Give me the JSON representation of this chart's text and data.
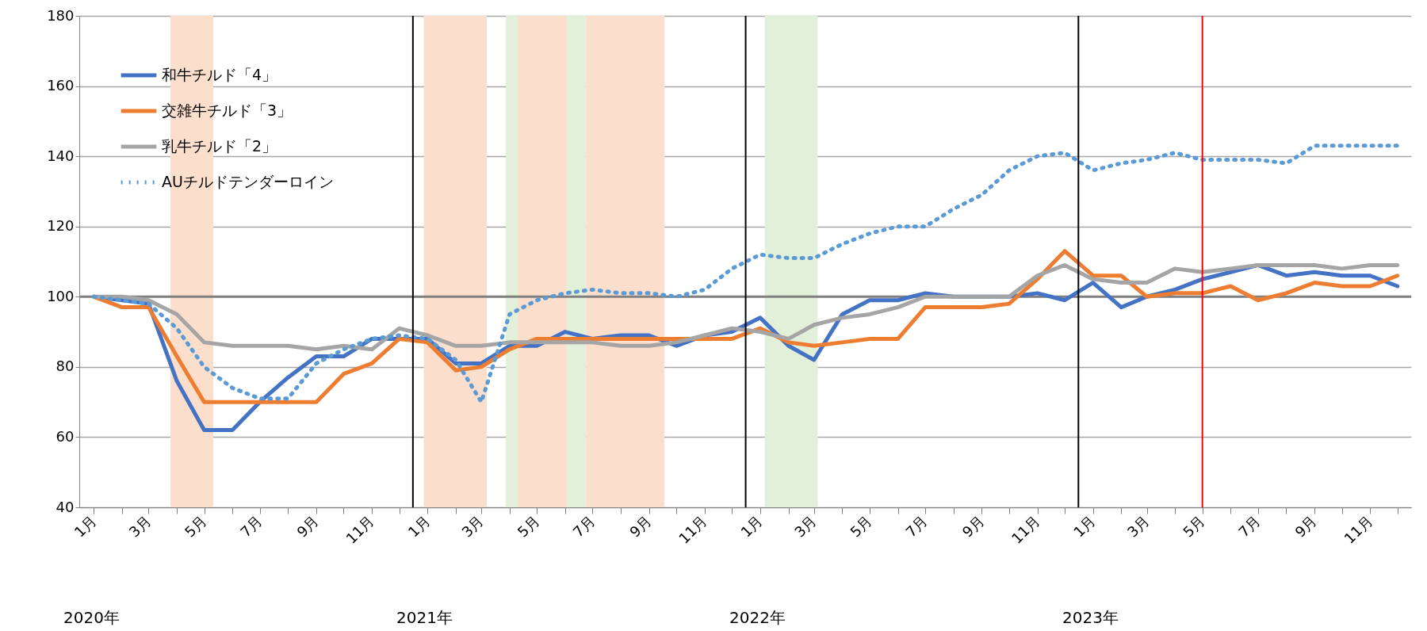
{
  "chart_data": {
    "type": "line",
    "x": [
      "2020-01",
      "2020-02",
      "2020-03",
      "2020-04",
      "2020-05",
      "2020-06",
      "2020-07",
      "2020-08",
      "2020-09",
      "2020-10",
      "2020-11",
      "2020-12",
      "2021-01",
      "2021-02",
      "2021-03",
      "2021-04",
      "2021-05",
      "2021-06",
      "2021-07",
      "2021-08",
      "2021-09",
      "2021-10",
      "2021-11",
      "2021-12",
      "2022-01",
      "2022-02",
      "2022-03",
      "2022-04",
      "2022-05",
      "2022-06",
      "2022-07",
      "2022-08",
      "2022-09",
      "2022-10",
      "2022-11",
      "2022-12",
      "2023-01",
      "2023-02",
      "2023-03",
      "2023-04",
      "2023-05",
      "2023-06",
      "2023-07",
      "2023-08",
      "2023-09",
      "2023-10",
      "2023-11",
      "2023-12"
    ],
    "series": [
      {
        "name": "和牛チルド「4」",
        "color": "#4472c4",
        "line_style": "solid",
        "values": [
          100,
          99,
          98,
          76,
          62,
          62,
          70,
          77,
          83,
          83,
          88,
          88,
          88,
          81,
          81,
          86,
          86,
          90,
          88,
          89,
          89,
          86,
          89,
          90,
          94,
          86,
          82,
          95,
          99,
          99,
          101,
          100,
          100,
          100,
          101,
          99,
          104,
          97,
          100,
          102,
          105,
          107,
          109,
          106,
          107,
          106,
          106,
          103
        ]
      },
      {
        "name": "交雑牛チルド「3」",
        "color": "#ed7d31",
        "line_style": "solid",
        "values": [
          100,
          97,
          97,
          83,
          70,
          70,
          70,
          70,
          70,
          78,
          81,
          88,
          87,
          79,
          80,
          85,
          88,
          88,
          88,
          88,
          88,
          88,
          88,
          88,
          91,
          87,
          86,
          87,
          88,
          88,
          97,
          97,
          97,
          98,
          105,
          113,
          106,
          106,
          100,
          101,
          101,
          103,
          99,
          101,
          104,
          103,
          103,
          106
        ]
      },
      {
        "name": "乳牛チルド「2」",
        "color": "#a5a5a5",
        "line_style": "solid",
        "values": [
          100,
          100,
          99,
          95,
          87,
          86,
          86,
          86,
          85,
          86,
          85,
          91,
          89,
          86,
          86,
          87,
          87,
          87,
          87,
          86,
          86,
          87,
          89,
          91,
          90,
          88,
          92,
          94,
          95,
          97,
          100,
          100,
          100,
          100,
          106,
          109,
          105,
          104,
          104,
          108,
          107,
          108,
          109,
          109,
          109,
          108,
          109,
          109
        ]
      },
      {
        "name": "AUチルドテンダーロイン",
        "color": "#5b9bd5",
        "line_style": "dotted",
        "values": [
          100,
          99,
          98,
          91,
          80,
          74,
          71,
          71,
          81,
          85,
          88,
          89,
          88,
          82,
          70,
          95,
          99,
          101,
          102,
          101,
          101,
          100,
          102,
          108,
          112,
          111,
          111,
          115,
          118,
          120,
          120,
          125,
          129,
          136,
          140,
          141,
          136,
          138,
          139,
          141,
          139,
          139,
          139,
          138,
          143,
          143,
          143,
          143
        ]
      }
    ],
    "xlim": [
      "2019-12-16",
      "2023-12-16"
    ],
    "xticks": [
      {
        "value": "2020-01",
        "label": "1月"
      },
      {
        "value": "2020-02",
        "label": null
      },
      {
        "value": "2020-03",
        "label": "3月"
      },
      {
        "value": "2020-04",
        "label": null
      },
      {
        "value": "2020-05",
        "label": "5月"
      },
      {
        "value": "2020-06",
        "label": null
      },
      {
        "value": "2020-07",
        "label": "7月"
      },
      {
        "value": "2020-08",
        "label": null
      },
      {
        "value": "2020-09",
        "label": "9月"
      },
      {
        "value": "2020-10",
        "label": null
      },
      {
        "value": "2020-11",
        "label": "11月"
      },
      {
        "value": "2020-12",
        "label": null
      },
      {
        "value": "2021-01",
        "label": "1月"
      },
      {
        "value": "2021-02",
        "label": null
      },
      {
        "value": "2021-03",
        "label": "3月"
      },
      {
        "value": "2021-04",
        "label": null
      },
      {
        "value": "2021-05",
        "label": "5月"
      },
      {
        "value": "2021-06",
        "label": null
      },
      {
        "value": "2021-07",
        "label": "7月"
      },
      {
        "value": "2021-08",
        "label": null
      },
      {
        "value": "2021-09",
        "label": "9月"
      },
      {
        "value": "2021-10",
        "label": null
      },
      {
        "value": "2021-11",
        "label": "11月"
      },
      {
        "value": "2021-12",
        "label": null
      },
      {
        "value": "2022-01",
        "label": "1月"
      },
      {
        "value": "2022-02",
        "label": null
      },
      {
        "value": "2022-03",
        "label": "3月"
      },
      {
        "value": "2022-04",
        "label": null
      },
      {
        "value": "2022-05",
        "label": "5月"
      },
      {
        "value": "2022-06",
        "label": null
      },
      {
        "value": "2022-07",
        "label": "7月"
      },
      {
        "value": "2022-08",
        "label": null
      },
      {
        "value": "2022-09",
        "label": "9月"
      },
      {
        "value": "2022-10",
        "label": null
      },
      {
        "value": "2022-11",
        "label": "11月"
      },
      {
        "value": "2022-12",
        "label": null
      },
      {
        "value": "2023-01",
        "label": "1月"
      },
      {
        "value": "2023-02",
        "label": null
      },
      {
        "value": "2023-03",
        "label": "3月"
      },
      {
        "value": "2023-04",
        "label": null
      },
      {
        "value": "2023-05",
        "label": "5月"
      },
      {
        "value": "2023-06",
        "label": null
      },
      {
        "value": "2023-07",
        "label": "7月"
      },
      {
        "value": "2023-08",
        "label": null
      },
      {
        "value": "2023-09",
        "label": "9月"
      },
      {
        "value": "2023-10",
        "label": null
      },
      {
        "value": "2023-11",
        "label": "11月"
      },
      {
        "value": "2023-12",
        "label": null
      }
    ],
    "ylim": [
      40,
      180
    ],
    "yticks": [
      40,
      60,
      80,
      100,
      120,
      140,
      160,
      180
    ],
    "grid": "y",
    "legend": "top left",
    "ref_lines": [
      {
        "axis": "y",
        "value": 100,
        "color": "#808080"
      },
      {
        "axis": "x",
        "value": "2020-12-16",
        "color": "#000000"
      },
      {
        "axis": "x",
        "value": "2021-12-16",
        "color": "#000000"
      },
      {
        "axis": "x",
        "value": "2022-12-16",
        "color": "#000000"
      },
      {
        "axis": "x",
        "value": "2023-05",
        "color": "#ff0000"
      }
    ],
    "bands": [
      {
        "axis": "x",
        "from": "2020-03-25",
        "to": "2020-05-11",
        "color": "#fbdfcc"
      },
      {
        "axis": "x",
        "from": "2020-12-28",
        "to": "2021-03-07",
        "color": "#fbdfcc"
      },
      {
        "axis": "x",
        "from": "2021-03-28",
        "to": "2021-04-10",
        "color": "#e2efd9"
      },
      {
        "axis": "x",
        "from": "2021-04-10",
        "to": "2021-06-02",
        "color": "#fbdfcc"
      },
      {
        "axis": "x",
        "from": "2021-06-02",
        "to": "2021-06-24",
        "color": "#e2efd9"
      },
      {
        "axis": "x",
        "from": "2021-06-24",
        "to": "2021-09-18",
        "color": "#fbdfcc"
      },
      {
        "axis": "x",
        "from": "2022-01-06",
        "to": "2022-03-05",
        "color": "#e2efd9"
      }
    ],
    "annotations": [
      "2020年",
      "2021年",
      "2022年",
      "2023年"
    ]
  }
}
